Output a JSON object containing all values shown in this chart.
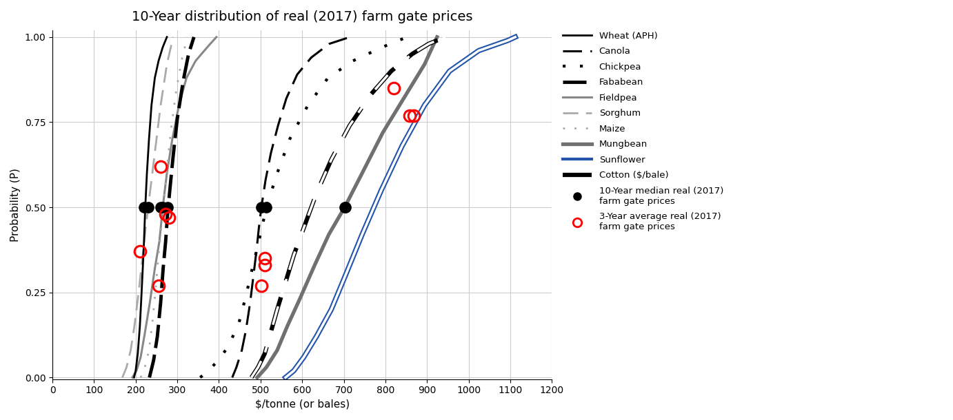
{
  "title": "10-Year distribution of real (2017) farm gate prices",
  "xlabel": "$/tonne (or bales)",
  "ylabel": "Probability (P)",
  "xlim": [
    0,
    1200
  ],
  "ylim": [
    0.0,
    1.0
  ],
  "xticks": [
    0,
    100,
    200,
    300,
    400,
    500,
    600,
    700,
    800,
    900,
    1000,
    1100,
    1200
  ],
  "yticks": [
    0.0,
    0.25,
    0.5,
    0.75,
    1.0
  ],
  "background_color": "#ffffff",
  "wheat_x": [
    196,
    200,
    205,
    210,
    213,
    217,
    220,
    223,
    227,
    232,
    238,
    246,
    255,
    265,
    275
  ],
  "wheat_p": [
    0.0,
    0.02,
    0.07,
    0.15,
    0.22,
    0.32,
    0.4,
    0.5,
    0.6,
    0.7,
    0.8,
    0.88,
    0.93,
    0.97,
    1.0
  ],
  "canola_x": [
    432,
    442,
    455,
    465,
    475,
    483,
    490,
    496,
    502,
    512,
    525,
    542,
    562,
    588,
    622,
    665,
    715
  ],
  "canola_p": [
    0.0,
    0.03,
    0.08,
    0.14,
    0.22,
    0.3,
    0.37,
    0.44,
    0.5,
    0.58,
    0.66,
    0.74,
    0.82,
    0.89,
    0.94,
    0.98,
    1.0
  ],
  "chickpea_x": [
    355,
    375,
    398,
    422,
    448,
    465,
    480,
    496,
    514,
    540,
    570,
    614,
    662,
    722,
    792,
    852
  ],
  "chickpea_p": [
    0.0,
    0.02,
    0.05,
    0.09,
    0.16,
    0.24,
    0.32,
    0.4,
    0.5,
    0.6,
    0.7,
    0.8,
    0.88,
    0.93,
    0.97,
    1.0
  ],
  "fababean_x": [
    233,
    243,
    252,
    260,
    266,
    272,
    276,
    282,
    290,
    300,
    314,
    327,
    340
  ],
  "fababean_p": [
    0.0,
    0.05,
    0.12,
    0.22,
    0.32,
    0.4,
    0.47,
    0.55,
    0.65,
    0.76,
    0.87,
    0.95,
    1.0
  ],
  "fieldpea_x": [
    192,
    202,
    212,
    222,
    234,
    246,
    257,
    265,
    275,
    288,
    304,
    322,
    344,
    372,
    394
  ],
  "fieldpea_p": [
    0.0,
    0.02,
    0.06,
    0.13,
    0.22,
    0.32,
    0.4,
    0.5,
    0.6,
    0.7,
    0.8,
    0.88,
    0.93,
    0.97,
    1.0
  ],
  "sorghum_x": [
    168,
    178,
    188,
    198,
    208,
    218,
    224,
    230,
    238,
    248,
    260,
    275,
    290
  ],
  "sorghum_p": [
    0.0,
    0.03,
    0.08,
    0.16,
    0.26,
    0.37,
    0.44,
    0.5,
    0.58,
    0.68,
    0.8,
    0.92,
    1.0
  ],
  "maize_x": [
    212,
    222,
    232,
    240,
    248,
    254,
    260,
    266,
    274,
    284,
    297,
    310,
    324
  ],
  "maize_p": [
    0.0,
    0.03,
    0.08,
    0.16,
    0.26,
    0.35,
    0.42,
    0.5,
    0.6,
    0.72,
    0.84,
    0.93,
    1.0
  ],
  "mungbean_x": [
    492,
    514,
    540,
    564,
    594,
    630,
    664,
    702,
    744,
    794,
    844,
    894,
    924
  ],
  "mungbean_p": [
    0.0,
    0.03,
    0.08,
    0.15,
    0.23,
    0.33,
    0.42,
    0.5,
    0.6,
    0.72,
    0.82,
    0.92,
    1.0
  ],
  "sunflower_x": [
    560,
    580,
    604,
    634,
    670,
    704,
    744,
    790,
    840,
    894,
    954,
    1024,
    1094,
    1112
  ],
  "sunflower_p": [
    0.0,
    0.02,
    0.06,
    0.12,
    0.2,
    0.3,
    0.42,
    0.55,
    0.68,
    0.8,
    0.9,
    0.96,
    0.99,
    1.0
  ],
  "cotton_x": [
    478,
    494,
    510,
    524,
    540,
    560,
    580,
    604,
    634,
    670,
    714,
    764,
    814,
    864,
    904,
    944
  ],
  "cotton_p": [
    0.0,
    0.03,
    0.07,
    0.13,
    0.2,
    0.28,
    0.36,
    0.44,
    0.54,
    0.64,
    0.74,
    0.83,
    0.9,
    0.95,
    0.98,
    1.0
  ],
  "median_dots_x": [
    220,
    502,
    514,
    276,
    265,
    230,
    260,
    702,
    704
  ],
  "threeyear_x": [
    210,
    255,
    260,
    272,
    280,
    502,
    510,
    510,
    820,
    858,
    868
  ],
  "threeyear_p": [
    0.37,
    0.27,
    0.62,
    0.48,
    0.47,
    0.27,
    0.33,
    0.35,
    0.85,
    0.77,
    0.77
  ]
}
